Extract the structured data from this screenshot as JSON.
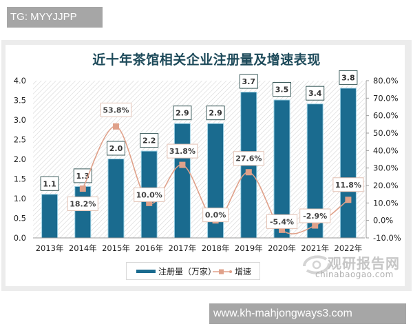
{
  "watermark_top": "TG: MYYJJPP",
  "watermark_bottom": "www.kh-mahjongways3.com",
  "logo": {
    "cn": "观研报告网",
    "en": "chinabaogao.com"
  },
  "chart_data": {
    "type": "bar+line",
    "title": "近十年茶馆相关企业注册量及增速表现",
    "categories": [
      "2013年",
      "2014年",
      "2015年",
      "2016年",
      "2017年",
      "2018年",
      "2019年",
      "2020年",
      "2021年",
      "2022年"
    ],
    "series": [
      {
        "name": "注册量（万家）",
        "type": "bar",
        "axis": "left",
        "values": [
          1.1,
          1.3,
          2.0,
          2.2,
          2.9,
          2.9,
          3.7,
          3.5,
          3.4,
          3.8
        ],
        "labels": [
          "1.1",
          "1.3",
          "2.0",
          "2.2",
          "2.9",
          "2.9",
          "3.7",
          "3.5",
          "3.4",
          "3.8"
        ],
        "color": "#1a6b8f"
      },
      {
        "name": "增速",
        "type": "line",
        "axis": "right",
        "values": [
          null,
          18.2,
          53.8,
          10.0,
          31.8,
          0.0,
          27.6,
          -5.4,
          -2.9,
          11.8
        ],
        "labels": [
          "",
          "18.2%",
          "53.8%",
          "10.0%",
          "31.8%",
          "0.0%",
          "27.6%",
          "-5.4%",
          "-2.9%",
          "11.8%"
        ],
        "color": "#e0a18a"
      }
    ],
    "left_axis": {
      "ticks": [
        "0.0",
        "0.5",
        "1.0",
        "1.5",
        "2.0",
        "2.5",
        "3.0",
        "3.5",
        "4.0"
      ],
      "ylim": [
        0,
        4.0
      ]
    },
    "right_axis": {
      "ticks": [
        "-10.0%",
        "0.0%",
        "10.0%",
        "20.0%",
        "30.0%",
        "40.0%",
        "50.0%",
        "60.0%",
        "70.0%",
        "80.0%"
      ],
      "ylim": [
        -10,
        80
      ]
    },
    "legend": {
      "bar_label": "注册量（万家）",
      "line_label": "增速",
      "position": "bottom"
    },
    "grid": false
  }
}
